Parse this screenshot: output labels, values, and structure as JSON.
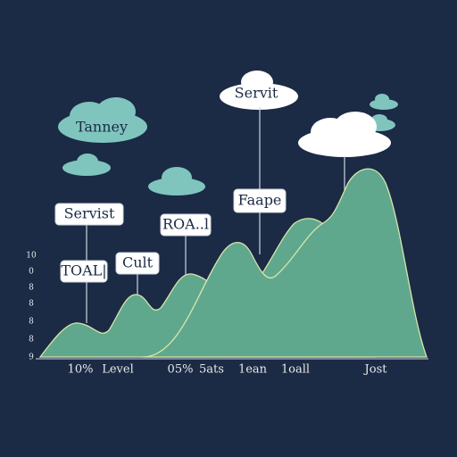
{
  "callouts": [
    "Tanney",
    "Servit",
    "Servist",
    "TOAL|",
    "Cult",
    "ROA..l",
    "Faape"
  ],
  "x_labels": [
    "10%",
    "Level",
    "05%",
    "5ats",
    "1ean",
    "1oall",
    "Jost"
  ],
  "y_labels": [
    "10",
    "0",
    "8",
    "8",
    "8",
    "8",
    "9"
  ]
}
